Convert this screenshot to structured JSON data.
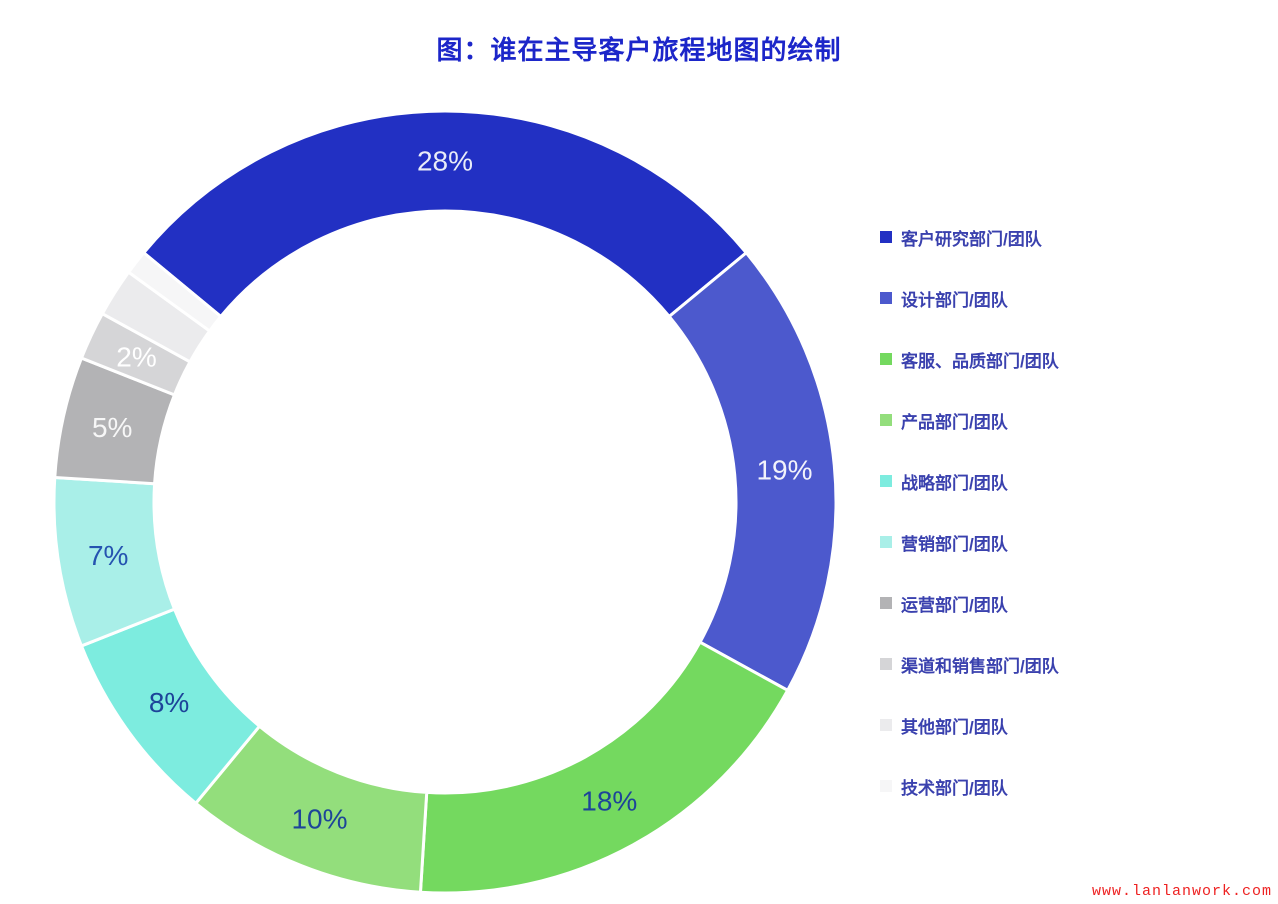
{
  "page": {
    "title": "图：谁在主导客户旅程地图的绘制",
    "watermark": "www.lanlanwork.com"
  },
  "chart_data": {
    "type": "pie",
    "subtype": "donut",
    "title": "图：谁在主导客户旅程地图的绘制",
    "legend_position": "right",
    "start_angle_deg": -50.4,
    "direction": "clockwise",
    "series": [
      {
        "label": "客户研究部门/团队",
        "value": 28,
        "percent_label": "28%",
        "color": "#2230c3",
        "label_color": "#e9ecf8"
      },
      {
        "label": "设计部门/团队",
        "value": 19,
        "percent_label": "19%",
        "color": "#4c59cd",
        "label_color": "#f2f3fb"
      },
      {
        "label": "客服、品质部门/团队",
        "value": 18,
        "percent_label": "18%",
        "color": "#74d95f",
        "label_color": "#1d4499"
      },
      {
        "label": "产品部门/团队",
        "value": 10,
        "percent_label": "10%",
        "color": "#93de7c",
        "label_color": "#1d4499"
      },
      {
        "label": "战略部门/团队",
        "value": 8,
        "percent_label": "8%",
        "color": "#7decdf",
        "label_color": "#1d4499"
      },
      {
        "label": "营销部门/团队",
        "value": 7,
        "percent_label": "7%",
        "color": "#a9efe8",
        "label_color": "#2553b0"
      },
      {
        "label": "运营部门/团队",
        "value": 5,
        "percent_label": "5%",
        "color": "#b3b3b5",
        "label_color": "#f7f7f7"
      },
      {
        "label": "渠道和销售部门/团队",
        "value": 2,
        "percent_label": "2%",
        "color": "#d5d5d7",
        "label_color": "#ffffff"
      },
      {
        "label": "其他部门/团队",
        "value": 2,
        "percent_label": "",
        "color": "#ebebed",
        "label_color": ""
      },
      {
        "label": "技术部门/团队",
        "value": 1,
        "percent_label": "",
        "color": "#f6f6f7",
        "label_color": ""
      }
    ]
  }
}
